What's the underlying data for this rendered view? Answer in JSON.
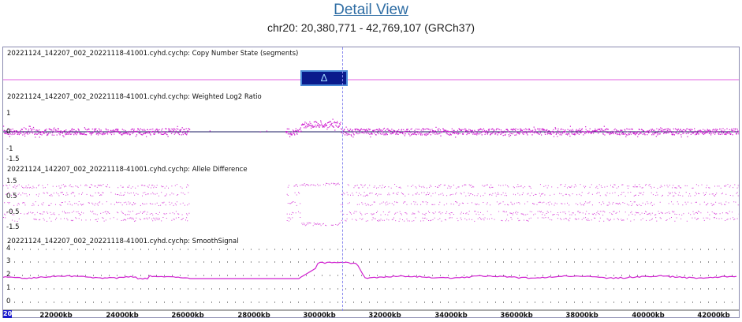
{
  "header": {
    "title": "Detail View",
    "region": "chr20: 20,380,771 - 42,769,107 (GRCh37)"
  },
  "tracks": [
    {
      "label": "20221124_142207_002_20221118-41001.cyhd.cychp: Copy Number State (segments)",
      "ticks": []
    },
    {
      "label": "20221124_142207_002_20221118-41001.cyhd.cychp: Weighted Log2 Ratio",
      "ticks": [
        "1",
        "0",
        "-1",
        "-1.5"
      ]
    },
    {
      "label": "20221124_142207_002_20221118-41001.cyhd.cychp: Allele Difference",
      "ticks": [
        "1.5",
        "0.5",
        "-0.5",
        "-1.5"
      ]
    },
    {
      "label": "20221124_142207_002_20221118-41001.cyhd.cychp: SmoothSignal",
      "ticks": [
        "4",
        "3",
        "2",
        "1",
        "0"
      ]
    }
  ],
  "segment": {
    "symbol": "Δ",
    "start_kb": 29800,
    "end_kb": 30400
  },
  "cursor_kb": 30700,
  "x_axis": {
    "start_label": "20",
    "range_kb": [
      20380.771,
      42769.107
    ],
    "ticks": [
      {
        "kb": 22000,
        "label": "22000kb"
      },
      {
        "kb": 24000,
        "label": "24000kb"
      },
      {
        "kb": 26000,
        "label": "26000kb"
      },
      {
        "kb": 28000,
        "label": "28000kb"
      },
      {
        "kb": 30000,
        "label": "30000kb"
      },
      {
        "kb": 32000,
        "label": "32000kb"
      },
      {
        "kb": 34000,
        "label": "34000kb"
      },
      {
        "kb": 36000,
        "label": "36000kb"
      },
      {
        "kb": 38000,
        "label": "38000kb"
      },
      {
        "kb": 40000,
        "label": "40000kb"
      },
      {
        "kb": 42000,
        "label": "42000kb"
      }
    ]
  },
  "colors": {
    "data": "#d020d0",
    "segment_fill": "#0a1a8c",
    "segment_border": "#4b8bd8",
    "cursor": "#8c8cf0",
    "baseline": "#1a1a60"
  }
}
